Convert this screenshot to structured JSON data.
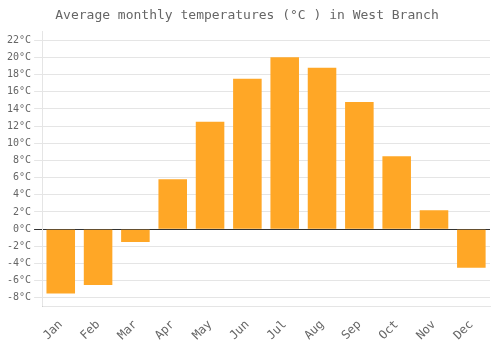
{
  "chart_data": {
    "type": "bar",
    "title": "Average monthly temperatures (°C ) in West Branch",
    "categories": [
      "Jan",
      "Feb",
      "Mar",
      "Apr",
      "May",
      "Jun",
      "Jul",
      "Aug",
      "Sep",
      "Oct",
      "Nov",
      "Dec"
    ],
    "values": [
      -7.5,
      -6.5,
      -1.5,
      5.8,
      12.5,
      17.5,
      20.0,
      18.8,
      14.8,
      8.5,
      2.2,
      -4.5
    ],
    "color": "#FFA726",
    "ylim": [
      -9,
      23
    ],
    "yticks": [
      {
        "value": -8,
        "label": "-8°C"
      },
      {
        "value": -6,
        "label": "-6°C"
      },
      {
        "value": -4,
        "label": "-4°C"
      },
      {
        "value": -2,
        "label": "-2°C"
      },
      {
        "value": 0,
        "label": "0°C"
      },
      {
        "value": 2,
        "label": "2°C"
      },
      {
        "value": 4,
        "label": "4°C"
      },
      {
        "value": 6,
        "label": "6°C"
      },
      {
        "value": 8,
        "label": "8°C"
      },
      {
        "value": 10,
        "label": "10°C"
      },
      {
        "value": 12,
        "label": "12°C"
      },
      {
        "value": 14,
        "label": "14°C"
      },
      {
        "value": 16,
        "label": "16°C"
      },
      {
        "value": 18,
        "label": "18°C"
      },
      {
        "value": 20,
        "label": "20°C"
      },
      {
        "value": 22,
        "label": "22°C"
      }
    ],
    "grid": true
  }
}
